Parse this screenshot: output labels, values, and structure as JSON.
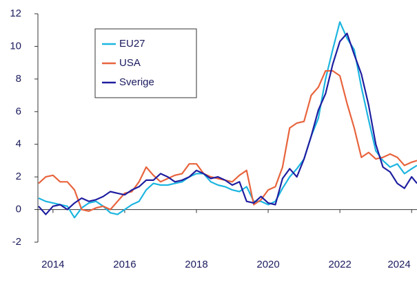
{
  "chart_data": {
    "type": "line",
    "x": [
      2013.6,
      2013.8,
      2014.0,
      2014.2,
      2014.4,
      2014.6,
      2014.8,
      2015.0,
      2015.2,
      2015.4,
      2015.6,
      2015.8,
      2016.0,
      2016.2,
      2016.4,
      2016.6,
      2016.8,
      2017.0,
      2017.2,
      2017.4,
      2017.6,
      2017.8,
      2018.0,
      2018.2,
      2018.4,
      2018.6,
      2018.8,
      2019.0,
      2019.2,
      2019.4,
      2019.6,
      2019.8,
      2020.0,
      2020.2,
      2020.4,
      2020.6,
      2020.8,
      2021.0,
      2021.2,
      2021.4,
      2021.6,
      2021.8,
      2022.0,
      2022.2,
      2022.4,
      2022.6,
      2022.8,
      2023.0,
      2023.2,
      2023.4,
      2023.6,
      2023.8,
      2024.0,
      2024.15
    ],
    "series": [
      {
        "name": "EU27",
        "color": "#1cb5e0",
        "values": [
          0.7,
          0.5,
          0.4,
          0.3,
          0.2,
          -0.5,
          0.1,
          0.4,
          0.5,
          0.2,
          -0.2,
          -0.3,
          0.0,
          0.3,
          0.5,
          1.2,
          1.6,
          1.5,
          1.5,
          1.6,
          1.7,
          2.0,
          2.2,
          2.2,
          1.7,
          1.5,
          1.4,
          1.2,
          1.1,
          1.4,
          0.5,
          0.5,
          0.3,
          0.5,
          1.3,
          2.0,
          2.5,
          3.1,
          4.5,
          5.6,
          8.0,
          9.8,
          11.5,
          10.5,
          9.8,
          7.5,
          5.5,
          3.6,
          3.0,
          2.6,
          2.8,
          2.2,
          2.5,
          2.7
        ]
      },
      {
        "name": "USA",
        "color": "#e8633c",
        "values": [
          1.6,
          2.0,
          2.1,
          1.7,
          1.7,
          1.2,
          0.0,
          -0.1,
          0.1,
          0.2,
          0.0,
          0.5,
          1.0,
          1.1,
          1.7,
          2.6,
          2.1,
          1.7,
          1.9,
          2.1,
          2.2,
          2.8,
          2.8,
          2.2,
          2.0,
          1.9,
          1.8,
          1.7,
          2.1,
          2.4,
          0.3,
          0.6,
          1.2,
          1.4,
          2.6,
          5.0,
          5.3,
          5.4,
          7.0,
          7.5,
          8.5,
          8.5,
          8.2,
          6.5,
          5.0,
          3.2,
          3.5,
          3.1,
          3.2,
          3.4,
          3.2,
          2.7,
          2.9,
          3.0
        ]
      },
      {
        "name": "Sverige",
        "color": "#1e1ea0",
        "values": [
          0.2,
          -0.3,
          0.2,
          0.3,
          0.0,
          0.4,
          0.7,
          0.5,
          0.6,
          0.8,
          1.1,
          1.0,
          0.9,
          1.2,
          1.4,
          1.8,
          1.8,
          2.2,
          2.0,
          1.7,
          1.8,
          2.0,
          2.4,
          2.2,
          1.9,
          2.0,
          1.8,
          1.5,
          1.7,
          0.5,
          0.4,
          0.8,
          0.4,
          0.3,
          1.9,
          2.5,
          2.0,
          3.1,
          4.5,
          6.1,
          7.1,
          8.9,
          10.3,
          10.8,
          9.5,
          8.3,
          6.4,
          4.0,
          2.6,
          2.3,
          1.6,
          1.3,
          2.0,
          1.6
        ]
      }
    ],
    "xlim": [
      2013.58,
      2024.15
    ],
    "xticks": [
      2014,
      2016,
      2018,
      2020,
      2022,
      2024
    ],
    "ylim": [
      -2,
      12
    ],
    "yticks": [
      -2,
      0,
      2,
      4,
      6,
      8,
      10,
      12
    ],
    "grid": false,
    "legend": "upper left"
  }
}
